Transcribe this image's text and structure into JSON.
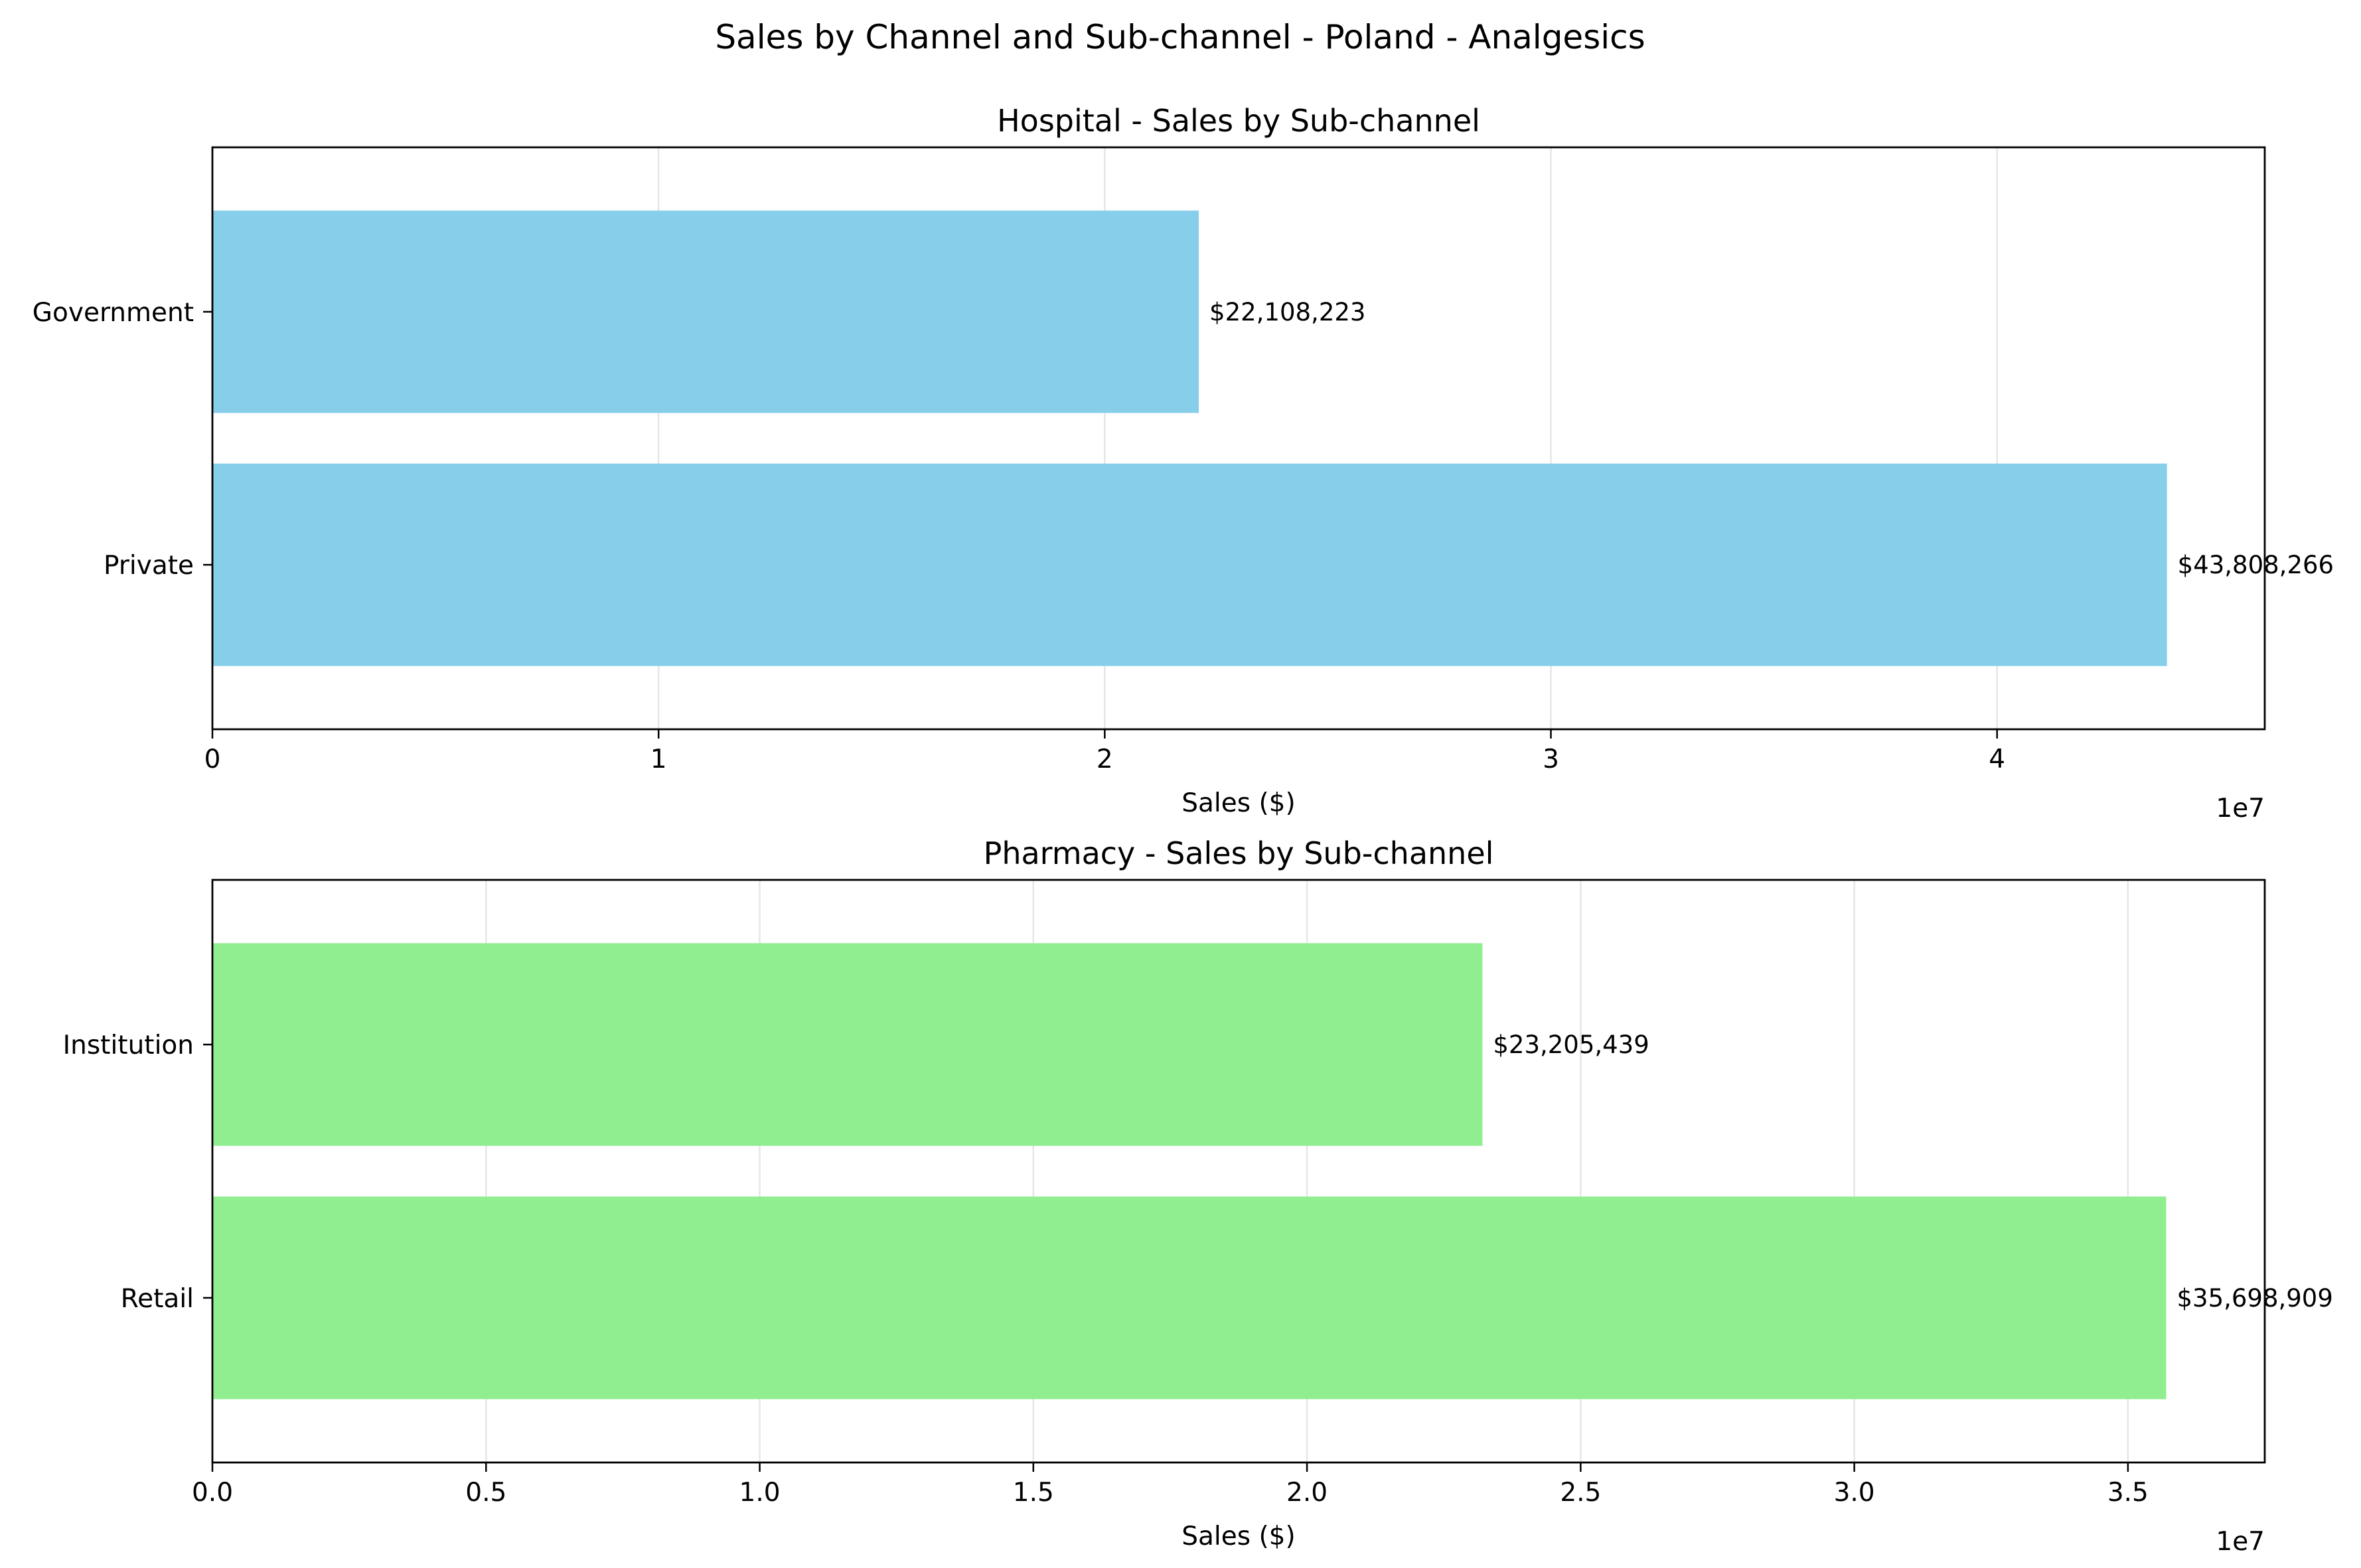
{
  "figure": {
    "title": "Sales by Channel and Sub-channel - Poland - Analgesics"
  },
  "chart_data": [
    {
      "type": "bar",
      "orientation": "horizontal",
      "title": "Hospital - Sales by Sub-channel",
      "xlabel": "Sales ($)",
      "ylabel": "",
      "offset_label": "1e7",
      "xlim": [
        0,
        46000000
      ],
      "xticks": [
        0,
        10000000,
        20000000,
        30000000,
        40000000
      ],
      "xtick_labels": [
        "0",
        "1",
        "2",
        "3",
        "4"
      ],
      "grid": true,
      "color": "#87ceeb",
      "categories": [
        "Government",
        "Private"
      ],
      "values": [
        22108223,
        43808266
      ],
      "value_labels": [
        "$22,108,223",
        "$43,808,266"
      ]
    },
    {
      "type": "bar",
      "orientation": "horizontal",
      "title": "Pharmacy - Sales by Sub-channel",
      "xlabel": "Sales ($)",
      "ylabel": "",
      "offset_label": "1e7",
      "xlim": [
        0,
        37500000
      ],
      "xticks": [
        0,
        5000000,
        10000000,
        15000000,
        20000000,
        25000000,
        30000000,
        35000000
      ],
      "xtick_labels": [
        "0.0",
        "0.5",
        "1.0",
        "1.5",
        "2.0",
        "2.5",
        "3.0",
        "3.5"
      ],
      "grid": true,
      "color": "#90ee90",
      "categories": [
        "Institution",
        "Retail"
      ],
      "values": [
        23205439,
        35698909
      ],
      "value_labels": [
        "$23,205,439",
        "$35,698,909"
      ]
    }
  ]
}
